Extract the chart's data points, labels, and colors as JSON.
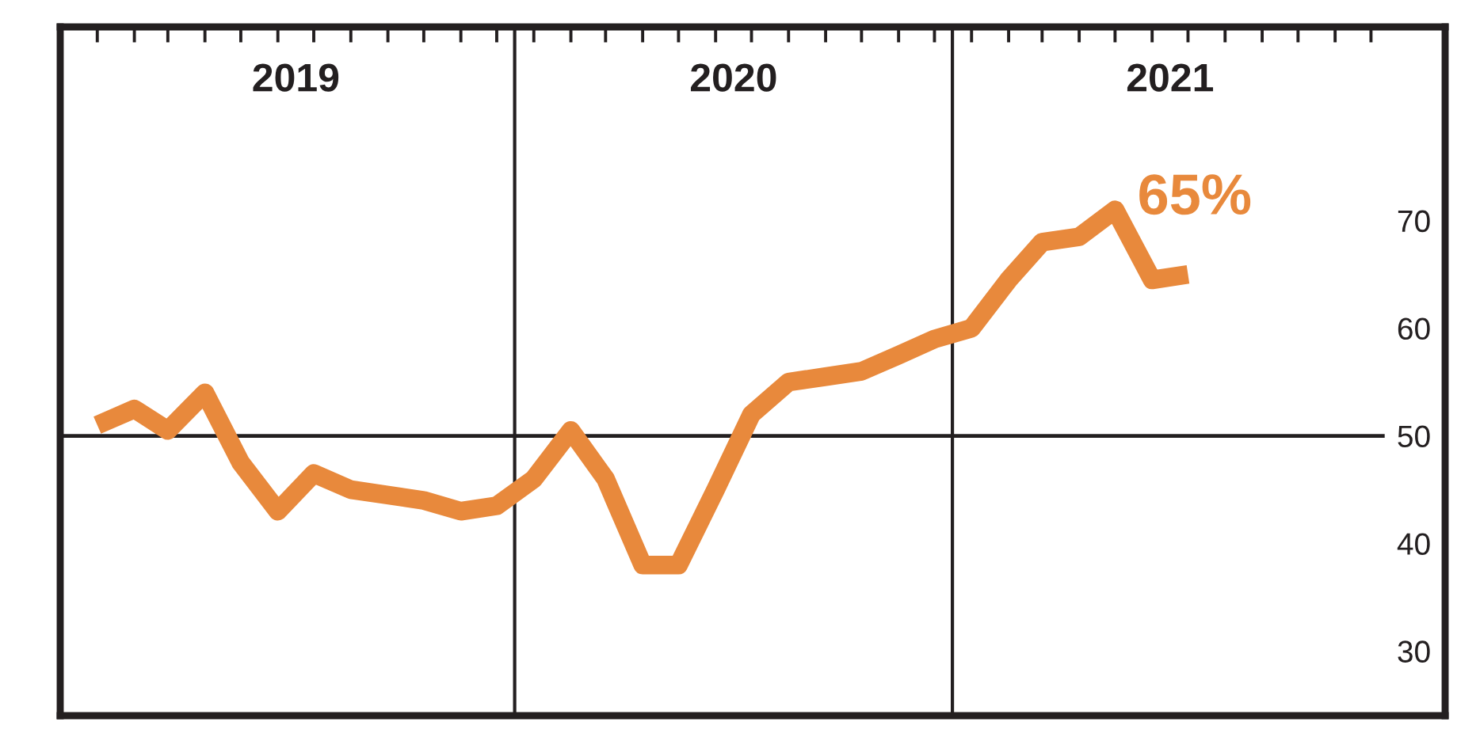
{
  "chart_data": {
    "type": "line",
    "color": "#e8893c",
    "line_style": "solid",
    "x": [
      "2019-01",
      "2019-02",
      "2019-03",
      "2019-04",
      "2019-05",
      "2019-06",
      "2019-07",
      "2019-08",
      "2019-09",
      "2019-10",
      "2019-11",
      "2019-12",
      "2020-01",
      "2020-02",
      "2020-03",
      "2020-04",
      "2020-05",
      "2020-06",
      "2020-07",
      "2020-08",
      "2020-09",
      "2020-10",
      "2020-11",
      "2020-12",
      "2021-01",
      "2021-02",
      "2021-03",
      "2021-04",
      "2021-05",
      "2021-06",
      "2021-07"
    ],
    "values": [
      51,
      52.5,
      50.5,
      54,
      47.5,
      43,
      46.5,
      45,
      44.5,
      44,
      43,
      43.5,
      46,
      50.5,
      46,
      38,
      38,
      45,
      52,
      55,
      55.5,
      56,
      57.5,
      59,
      60,
      64.5,
      68,
      68.5,
      71,
      64.5,
      65
    ],
    "value_labels": [
      null,
      null,
      null,
      null,
      null,
      null,
      null,
      null,
      null,
      null,
      null,
      null,
      null,
      null,
      null,
      null,
      null,
      null,
      null,
      null,
      null,
      null,
      null,
      null,
      null,
      null,
      null,
      null,
      null,
      null,
      "65%"
    ],
    "xlim": [
      "2018-12",
      "2022-02"
    ],
    "xticks": [
      {
        "value": "2019-01",
        "label": null
      },
      {
        "value": "2019-02",
        "label": null
      },
      {
        "value": "2019-03",
        "label": null
      },
      {
        "value": "2019-04",
        "label": null
      },
      {
        "value": "2019-05",
        "label": null
      },
      {
        "value": "2019-06",
        "label": null
      },
      {
        "value": "2019-06-16",
        "label": "2019"
      },
      {
        "value": "2019-07",
        "label": null
      },
      {
        "value": "2019-08",
        "label": null
      },
      {
        "value": "2019-09",
        "label": null
      },
      {
        "value": "2019-10",
        "label": null
      },
      {
        "value": "2019-11",
        "label": null
      },
      {
        "value": "2019-12",
        "label": null
      },
      {
        "value": "2020-01",
        "label": null
      },
      {
        "value": "2020-02",
        "label": null
      },
      {
        "value": "2020-03",
        "label": null
      },
      {
        "value": "2020-04",
        "label": null
      },
      {
        "value": "2020-05",
        "label": null
      },
      {
        "value": "2020-06",
        "label": null
      },
      {
        "value": "2020-06-16",
        "label": "2020"
      },
      {
        "value": "2020-07",
        "label": null
      },
      {
        "value": "2020-08",
        "label": null
      },
      {
        "value": "2020-09",
        "label": null
      },
      {
        "value": "2020-10",
        "label": null
      },
      {
        "value": "2020-11",
        "label": null
      },
      {
        "value": "2020-12",
        "label": null
      },
      {
        "value": "2021-01",
        "label": null
      },
      {
        "value": "2021-02",
        "label": null
      },
      {
        "value": "2021-03",
        "label": null
      },
      {
        "value": "2021-04",
        "label": null
      },
      {
        "value": "2021-05",
        "label": null
      },
      {
        "value": "2021-06",
        "label": null
      },
      {
        "value": "2021-06-16",
        "label": "2021"
      },
      {
        "value": "2021-07",
        "label": null
      },
      {
        "value": "2021-08",
        "label": null
      },
      {
        "value": "2021-09",
        "label": null
      },
      {
        "value": "2021-10",
        "label": null
      },
      {
        "value": "2021-11",
        "label": null
      },
      {
        "value": "2021-12",
        "label": null
      }
    ],
    "ylim": [
      24,
      88
    ],
    "yticks": [
      30,
      40,
      50,
      60,
      70
    ],
    "ref_lines": [
      {
        "axis": "y",
        "value": 50,
        "color": "#231f20"
      },
      {
        "axis": "x",
        "value": "2019-12-16",
        "color": "#231f20"
      },
      {
        "axis": "x",
        "value": "2020-12-16",
        "color": "#231f20"
      }
    ]
  }
}
